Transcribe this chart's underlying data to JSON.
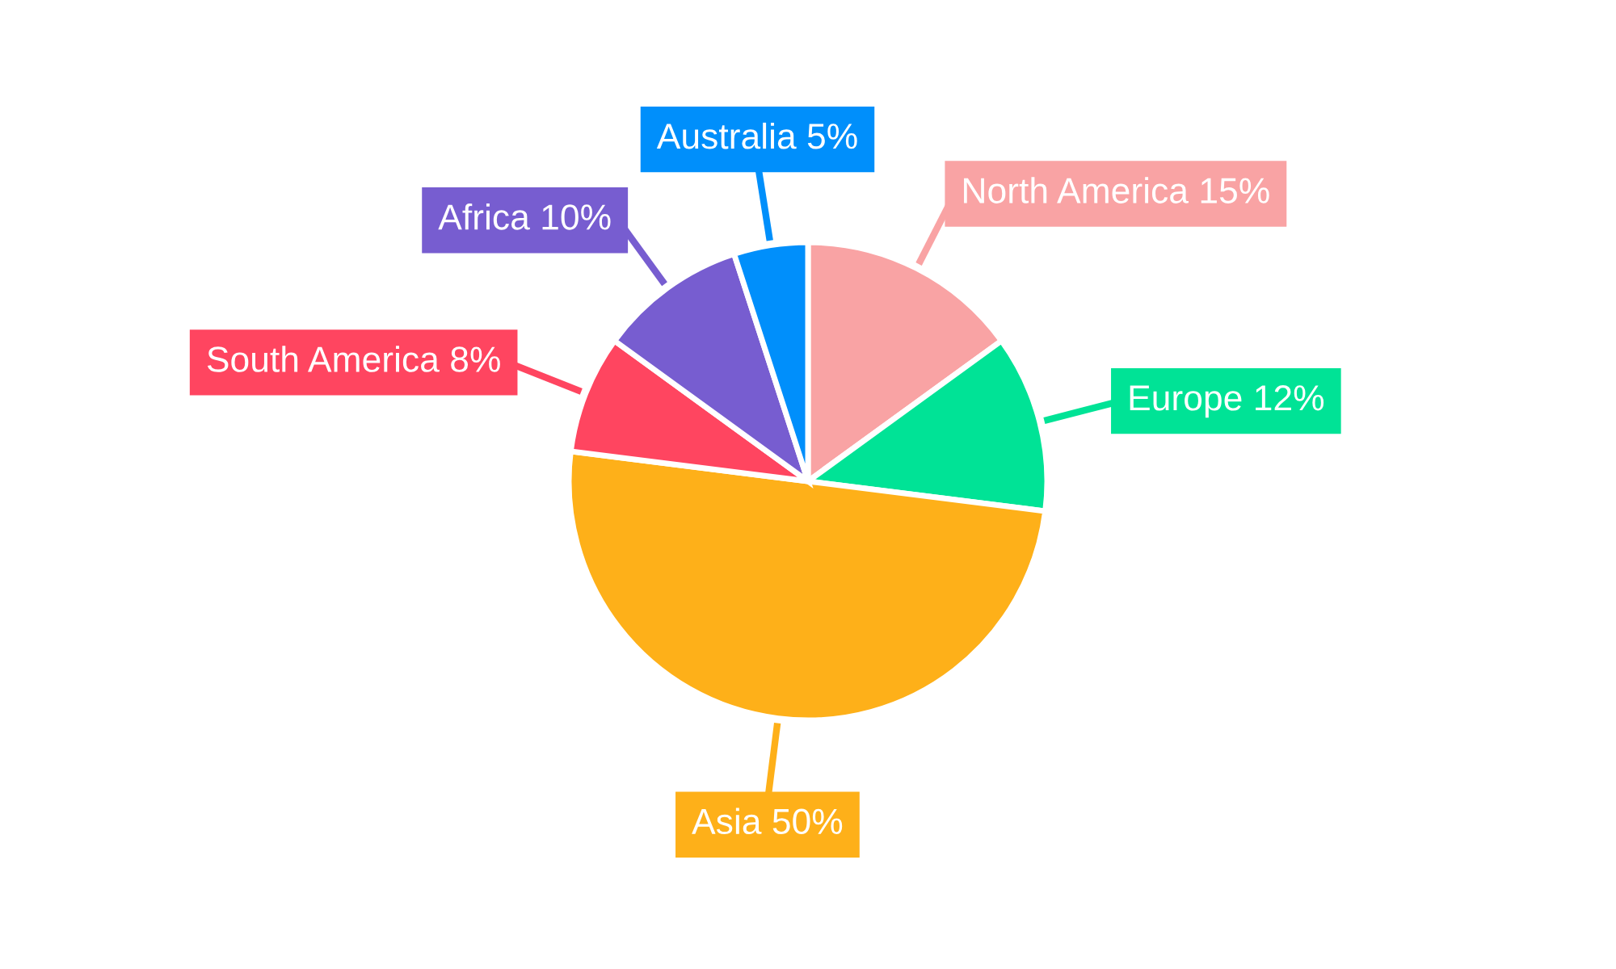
{
  "chart_data": {
    "type": "pie",
    "categories": [
      "North America",
      "Europe",
      "Asia",
      "South America",
      "Africa",
      "Australia"
    ],
    "values": [
      15,
      12,
      50,
      8,
      10,
      5
    ],
    "value_labels": [
      "15%",
      "12%",
      "50%",
      "8%",
      "10%",
      "5%"
    ],
    "colors": [
      "#f9a3a4",
      "#00e396",
      "#feb019",
      "#ff4560",
      "#775dd0",
      "#008ffb"
    ]
  }
}
